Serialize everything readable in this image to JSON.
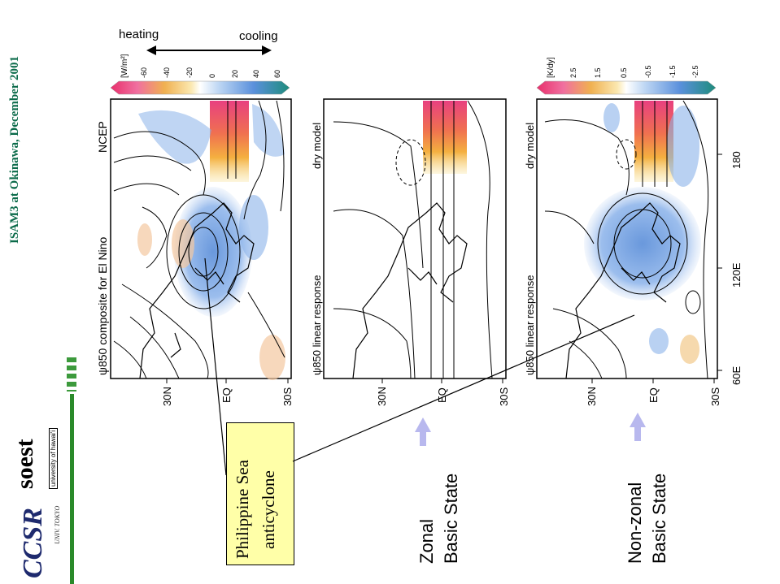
{
  "header": {
    "text": "ISAM3 at Okinawa, December 2001"
  },
  "logos": {
    "ccsr": "CCSR",
    "ccsr_sub": "UNIV. TOKYO",
    "soest": "soest",
    "soest_sub": "university of hawai'i"
  },
  "callout": {
    "line1": "Philippine Sea",
    "line2": "anticyclone"
  },
  "states": {
    "zonal": {
      "line1": "Zonal",
      "line2": "Basic State"
    },
    "nonzonal": {
      "line1": "Non-zonal",
      "line2": "Basic State"
    }
  },
  "scales": {
    "heating_label": "heating",
    "cooling_label": "cooling",
    "top_unit": "[W/m²]",
    "top_ticks": [
      "-60",
      "-40",
      "-20",
      "0",
      "20",
      "40",
      "60"
    ],
    "bottom_unit": "[K/dy]",
    "bottom_ticks": [
      "2.5",
      "1.5",
      "0.5",
      "-0.5",
      "-1.5",
      "-2.5"
    ]
  },
  "panels": {
    "p1": {
      "left_label": "ψ850 composite for El Nino",
      "right_label": "NCEP"
    },
    "p2": {
      "left_label": "ψ850 linear response",
      "right_label": "dry model"
    },
    "p3": {
      "left_label": "ψ850 linear response",
      "right_label": "dry model"
    }
  },
  "axes": {
    "lat_ticks": [
      "30N",
      "EQ",
      "30S"
    ],
    "lon_ticks": [
      "60E",
      "120E",
      "180"
    ]
  },
  "colors": {
    "header_green": "#0b6b4a",
    "callout_fill": "#ffffa8",
    "arrow_blue": "#b8b8ee",
    "heating_orange": "#f0a040",
    "heating_magenta": "#e84080",
    "cooling_blue": "#6fa0e0",
    "cooling_teal": "#2a8a8a"
  }
}
